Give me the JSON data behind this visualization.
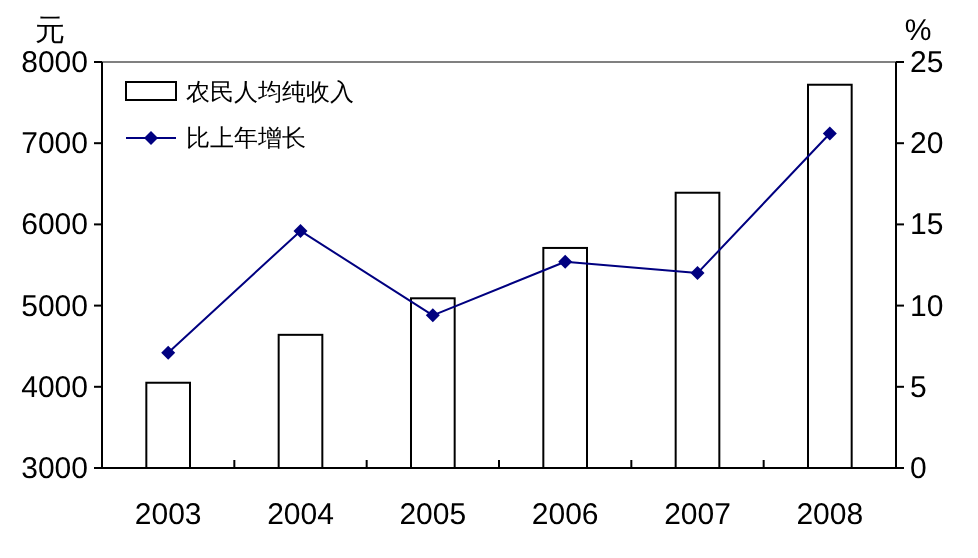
{
  "chart_data": {
    "type": "bar",
    "ylabel": "元",
    "y2label": "%",
    "categories": [
      "2003",
      "2004",
      "2005",
      "2006",
      "2007",
      "2008"
    ],
    "series": [
      {
        "name": "农民人均纯收入",
        "color": "#ffffff",
        "values": [
          4050,
          4640,
          5090,
          5710,
          6390,
          7720
        ]
      },
      {
        "name": "比上年增长",
        "type": "line",
        "axis": "y2",
        "color": "#000080",
        "marker": "diamond",
        "values": [
          7.1,
          14.6,
          9.4,
          12.7,
          12.0,
          20.6
        ]
      }
    ],
    "ylim": [
      3000,
      8000
    ],
    "yticks": [
      3000,
      4000,
      5000,
      6000,
      7000,
      8000
    ],
    "y2lim": [
      0,
      25
    ],
    "y2ticks": [
      0,
      5,
      10,
      15,
      20,
      25
    ],
    "legend": "top left",
    "grid": false
  }
}
